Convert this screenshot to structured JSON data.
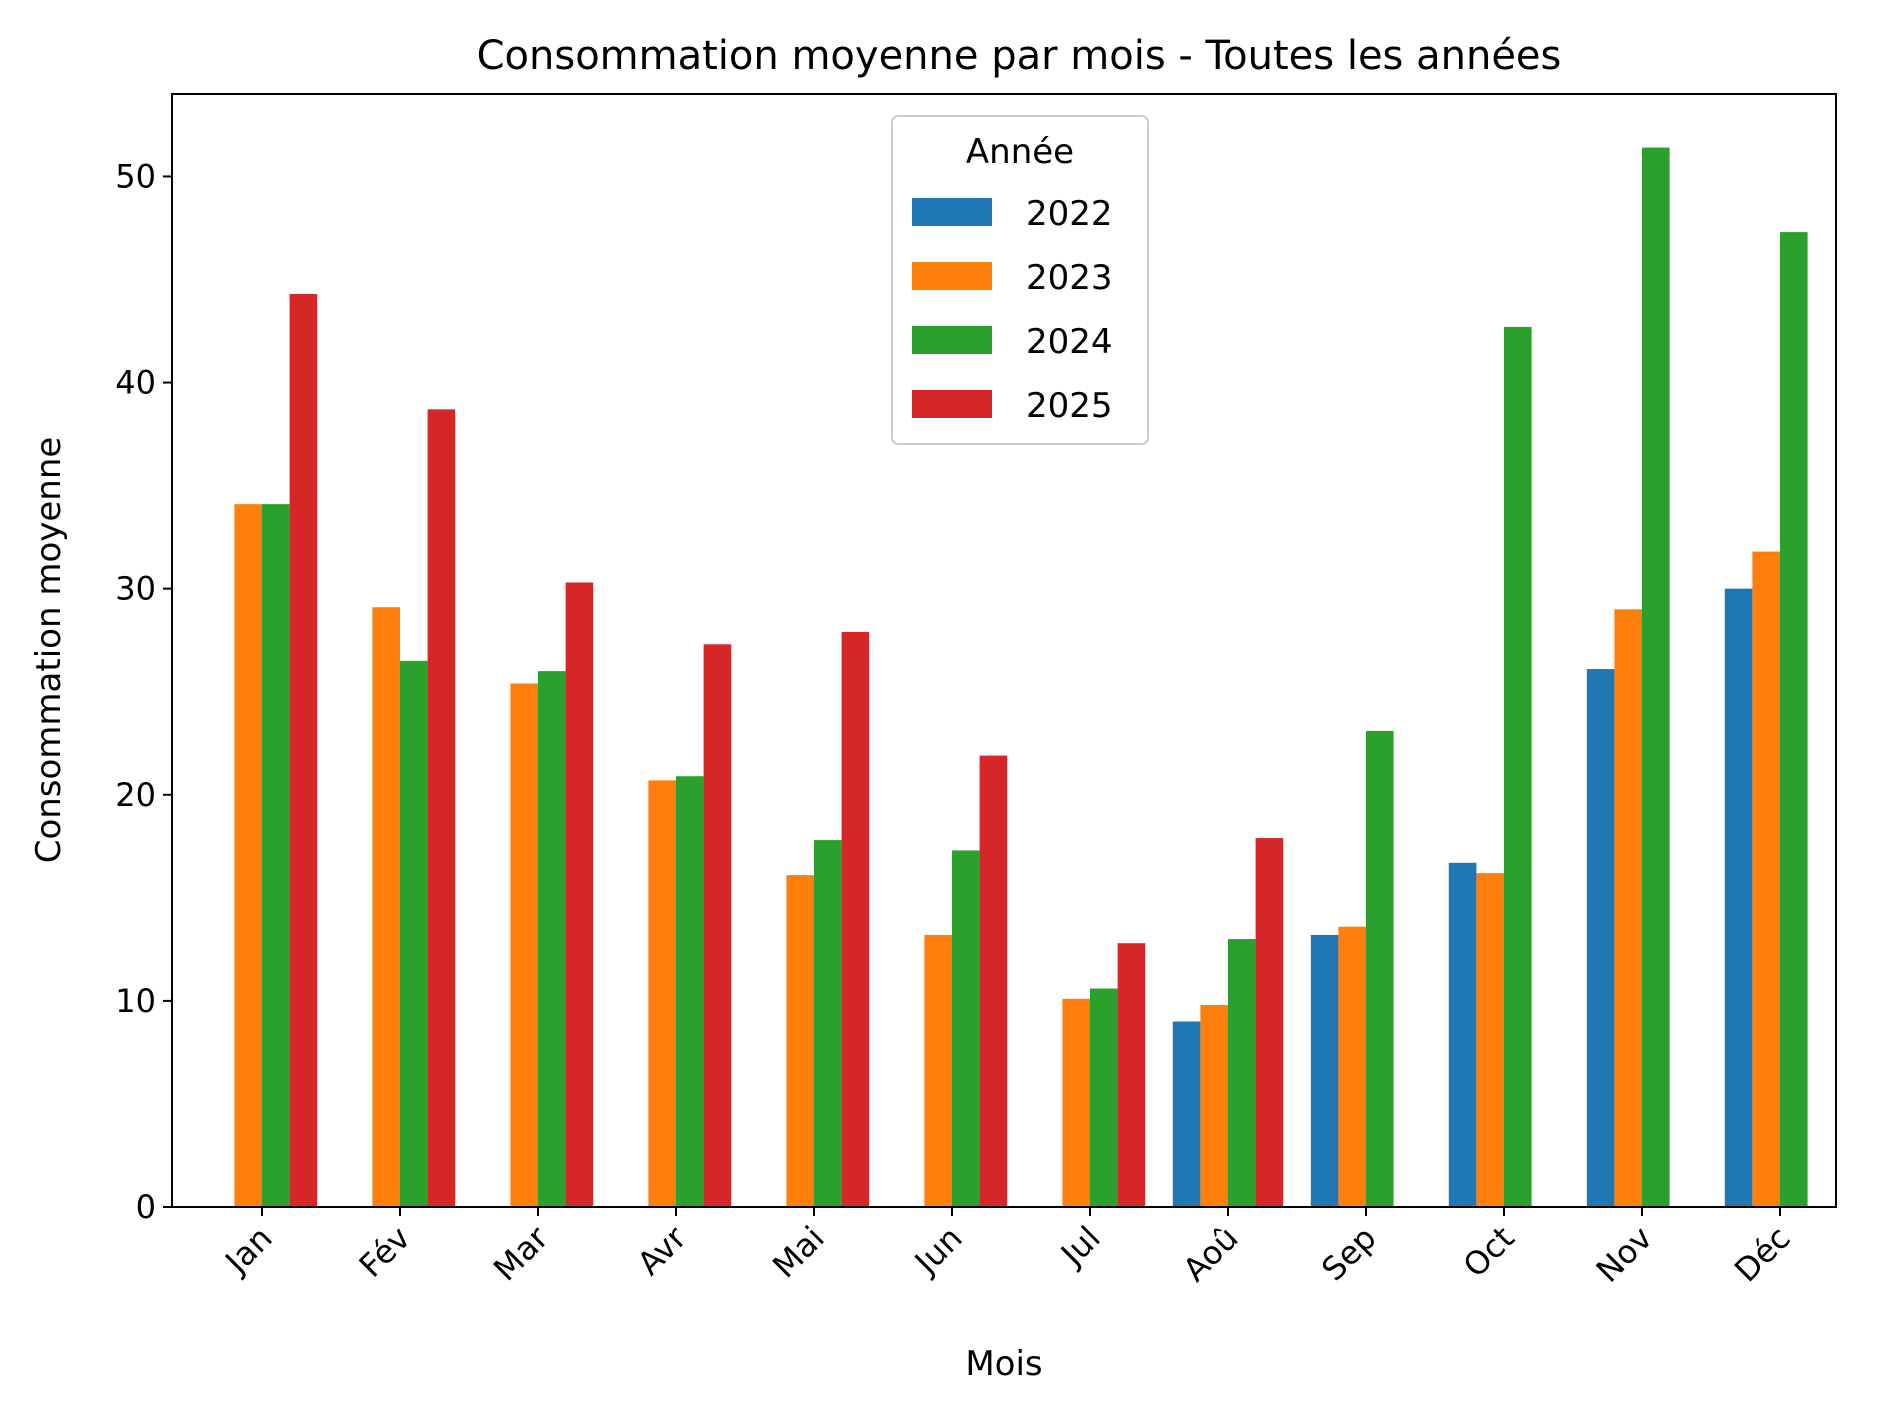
{
  "chart_data": {
    "type": "bar",
    "title": "Consommation moyenne par mois - Toutes les années",
    "xlabel": "Mois",
    "ylabel": "Consommation moyenne",
    "ylim": [
      0,
      54
    ],
    "yticks": [
      0,
      10,
      20,
      30,
      40,
      50
    ],
    "categories": [
      "Jan",
      "Fév",
      "Mar",
      "Avr",
      "Mai",
      "Jun",
      "Jul",
      "Aoû",
      "Sep",
      "Oct",
      "Nov",
      "Déc"
    ],
    "legend": {
      "title": "Année",
      "position": "top-center"
    },
    "grid": false,
    "series": [
      {
        "name": "2022",
        "color": "#1f77b4",
        "values": [
          null,
          null,
          null,
          null,
          null,
          null,
          null,
          9.0,
          13.2,
          16.7,
          26.1,
          30.0
        ]
      },
      {
        "name": "2023",
        "color": "#ff7f0e",
        "values": [
          34.1,
          29.1,
          25.4,
          20.7,
          16.1,
          13.2,
          10.1,
          9.8,
          13.6,
          16.2,
          29.0,
          31.8
        ]
      },
      {
        "name": "2024",
        "color": "#2ca02c",
        "values": [
          34.1,
          26.5,
          26.0,
          20.9,
          17.8,
          17.3,
          10.6,
          13.0,
          23.1,
          42.7,
          51.4,
          47.3
        ]
      },
      {
        "name": "2025",
        "color": "#d62728",
        "values": [
          44.3,
          38.7,
          30.3,
          27.3,
          27.9,
          21.9,
          12.8,
          17.9,
          null,
          null,
          null,
          null
        ]
      }
    ]
  }
}
